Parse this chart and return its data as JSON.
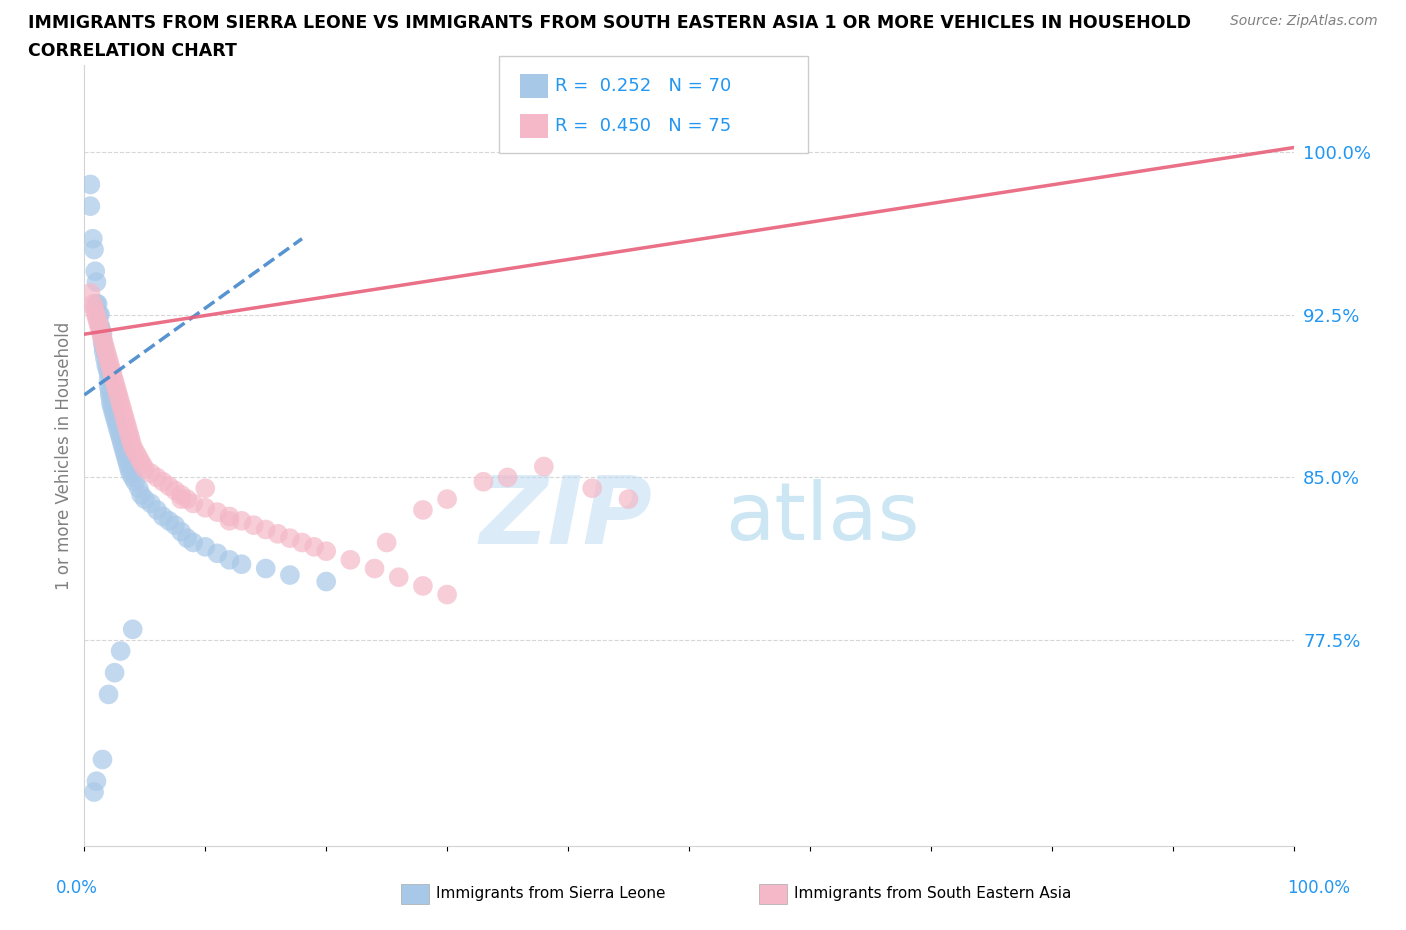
{
  "title_line1": "IMMIGRANTS FROM SIERRA LEONE VS IMMIGRANTS FROM SOUTH EASTERN ASIA 1 OR MORE VEHICLES IN HOUSEHOLD",
  "title_line2": "CORRELATION CHART",
  "source_text": "Source: ZipAtlas.com",
  "ylabel": "1 or more Vehicles in Household",
  "xmin": 0.0,
  "xmax": 1.0,
  "ymin": 0.68,
  "ymax": 1.04,
  "ytick_vals": [
    0.775,
    0.85,
    0.925,
    1.0
  ],
  "ytick_labels": [
    "77.5%",
    "85.0%",
    "92.5%",
    "100.0%"
  ],
  "watermark_zip": "ZIP",
  "watermark_atlas": "atlas",
  "color_blue": "#a8c8e8",
  "color_pink": "#f4b8c8",
  "color_trendline_blue": "#4488cc",
  "color_trendline_pink": "#e8607a",
  "sierra_leone_x": [
    0.005,
    0.005,
    0.007,
    0.008,
    0.009,
    0.01,
    0.01,
    0.011,
    0.012,
    0.013,
    0.013,
    0.014,
    0.015,
    0.015,
    0.015,
    0.016,
    0.016,
    0.017,
    0.018,
    0.019,
    0.02,
    0.02,
    0.02,
    0.021,
    0.021,
    0.022,
    0.022,
    0.023,
    0.024,
    0.025,
    0.026,
    0.027,
    0.028,
    0.029,
    0.03,
    0.031,
    0.032,
    0.033,
    0.034,
    0.035,
    0.036,
    0.037,
    0.038,
    0.04,
    0.042,
    0.045,
    0.047,
    0.05,
    0.055,
    0.06,
    0.065,
    0.07,
    0.075,
    0.08,
    0.085,
    0.09,
    0.1,
    0.11,
    0.12,
    0.13,
    0.15,
    0.17,
    0.2,
    0.04,
    0.03,
    0.025,
    0.02,
    0.015,
    0.01,
    0.008
  ],
  "sierra_leone_y": [
    0.985,
    0.975,
    0.96,
    0.955,
    0.945,
    0.94,
    0.93,
    0.93,
    0.925,
    0.925,
    0.92,
    0.918,
    0.916,
    0.914,
    0.912,
    0.91,
    0.908,
    0.905,
    0.902,
    0.9,
    0.898,
    0.895,
    0.892,
    0.89,
    0.888,
    0.886,
    0.884,
    0.882,
    0.88,
    0.878,
    0.876,
    0.874,
    0.872,
    0.87,
    0.868,
    0.866,
    0.864,
    0.862,
    0.86,
    0.858,
    0.856,
    0.854,
    0.852,
    0.85,
    0.848,
    0.845,
    0.842,
    0.84,
    0.838,
    0.835,
    0.832,
    0.83,
    0.828,
    0.825,
    0.822,
    0.82,
    0.818,
    0.815,
    0.812,
    0.81,
    0.808,
    0.805,
    0.802,
    0.78,
    0.77,
    0.76,
    0.75,
    0.72,
    0.71,
    0.705
  ],
  "sea_x": [
    0.005,
    0.007,
    0.008,
    0.009,
    0.01,
    0.011,
    0.012,
    0.013,
    0.014,
    0.015,
    0.016,
    0.017,
    0.018,
    0.019,
    0.02,
    0.021,
    0.022,
    0.023,
    0.024,
    0.025,
    0.026,
    0.027,
    0.028,
    0.029,
    0.03,
    0.031,
    0.032,
    0.033,
    0.034,
    0.035,
    0.036,
    0.037,
    0.038,
    0.039,
    0.04,
    0.042,
    0.044,
    0.046,
    0.048,
    0.05,
    0.055,
    0.06,
    0.065,
    0.07,
    0.075,
    0.08,
    0.085,
    0.09,
    0.1,
    0.11,
    0.12,
    0.13,
    0.14,
    0.15,
    0.16,
    0.17,
    0.18,
    0.19,
    0.2,
    0.22,
    0.24,
    0.26,
    0.28,
    0.3,
    0.35,
    0.38,
    0.42,
    0.45,
    0.25,
    0.28,
    0.3,
    0.33,
    0.08,
    0.1,
    0.12
  ],
  "sea_y": [
    0.935,
    0.93,
    0.928,
    0.926,
    0.924,
    0.922,
    0.92,
    0.918,
    0.916,
    0.914,
    0.912,
    0.91,
    0.908,
    0.906,
    0.904,
    0.902,
    0.9,
    0.898,
    0.896,
    0.894,
    0.892,
    0.89,
    0.888,
    0.886,
    0.884,
    0.882,
    0.88,
    0.878,
    0.876,
    0.874,
    0.872,
    0.87,
    0.868,
    0.866,
    0.864,
    0.862,
    0.86,
    0.858,
    0.856,
    0.854,
    0.852,
    0.85,
    0.848,
    0.846,
    0.844,
    0.842,
    0.84,
    0.838,
    0.836,
    0.834,
    0.832,
    0.83,
    0.828,
    0.826,
    0.824,
    0.822,
    0.82,
    0.818,
    0.816,
    0.812,
    0.808,
    0.804,
    0.8,
    0.796,
    0.85,
    0.855,
    0.845,
    0.84,
    0.82,
    0.835,
    0.84,
    0.848,
    0.84,
    0.845,
    0.83
  ],
  "sl_trendline_x0": 0.0,
  "sl_trendline_x1": 0.18,
  "sl_trendline_y0": 0.888,
  "sl_trendline_y1": 0.96,
  "sea_trendline_x0": 0.0,
  "sea_trendline_x1": 1.0,
  "sea_trendline_y0": 0.916,
  "sea_trendline_y1": 1.002
}
